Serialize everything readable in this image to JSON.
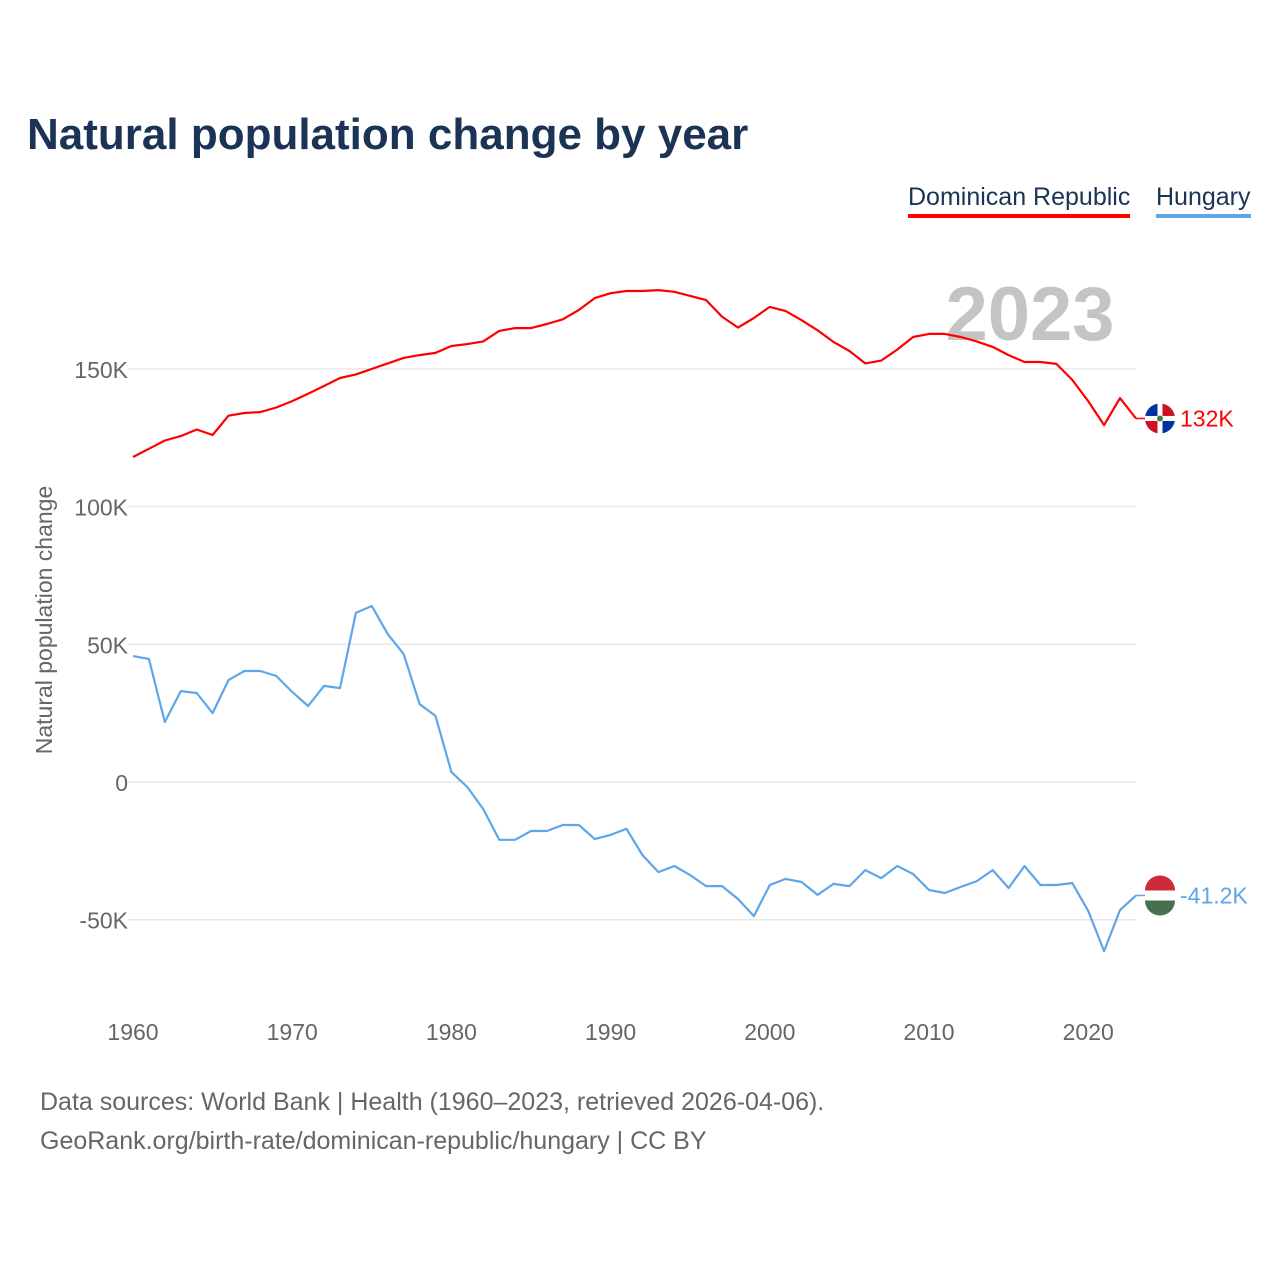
{
  "chart_data": {
    "type": "line",
    "title": "Natural population change by year",
    "ylabel": "Natural population change",
    "xlabel": "",
    "x_ticks": [
      "1960",
      "1970",
      "1980",
      "1990",
      "2000",
      "2010",
      "2020"
    ],
    "y_ticks": [
      {
        "value": 150000,
        "label": "150K"
      },
      {
        "value": 100000,
        "label": "100K"
      },
      {
        "value": 50000,
        "label": "50K"
      },
      {
        "value": 0,
        "label": "0"
      },
      {
        "value": -50000,
        "label": "-50K"
      }
    ],
    "xlim": [
      1960,
      2023
    ],
    "ylim": [
      -80000,
      190000
    ],
    "grid": true,
    "year_watermark": "2023",
    "legend_position": "top-right",
    "series": [
      {
        "name": "Dominican Republic",
        "color": "#ff0000",
        "end_label": "132K",
        "flag": "dominican-republic-flag",
        "values": [
          118000,
          121000,
          124000,
          125600,
          128000,
          126000,
          133000,
          134000,
          134300,
          136000,
          138300,
          141000,
          143800,
          146700,
          148000,
          150000,
          152000,
          154000,
          155000,
          155800,
          158300,
          159000,
          160000,
          163800,
          164800,
          164800,
          166300,
          168000,
          171400,
          175700,
          177500,
          178300,
          178300,
          178600,
          178000,
          176500,
          175000,
          169000,
          165000,
          168500,
          172500,
          171000,
          167700,
          164000,
          159800,
          156500,
          152000,
          153000,
          157000,
          161600,
          162700,
          162700,
          161600,
          160000,
          158000,
          155000,
          152500,
          152500,
          151800,
          146000,
          138300,
          129600,
          139400,
          132000
        ]
      },
      {
        "name": "Hungary",
        "color": "#5ea6ea",
        "end_label": "-41.2K",
        "flag": "hungary-flag",
        "values": [
          45700,
          44700,
          21800,
          33000,
          32300,
          25000,
          37000,
          40300,
          40300,
          38500,
          32700,
          27600,
          34900,
          34100,
          61400,
          63900,
          53700,
          46500,
          28300,
          24000,
          3600,
          -1800,
          -9800,
          -21000,
          -21000,
          -17800,
          -17800,
          -15600,
          -15600,
          -20700,
          -19200,
          -17000,
          -26500,
          -32700,
          -30500,
          -33800,
          -37800,
          -37800,
          -42500,
          -48700,
          -37400,
          -35200,
          -36300,
          -41000,
          -37000,
          -37800,
          -32000,
          -34900,
          -30500,
          -33400,
          -39200,
          -40300,
          -38100,
          -36000,
          -32000,
          -38500,
          -30500,
          -37400,
          -37400,
          -36700,
          -46800,
          -61400,
          -46500,
          -41200
        ]
      }
    ]
  },
  "footer": {
    "line1": "Data sources: World Bank | Health (1960–2023, retrieved 2026-04-06).",
    "line2": "GeoRank.org/birth-rate/dominican-republic/hungary | CC BY"
  }
}
